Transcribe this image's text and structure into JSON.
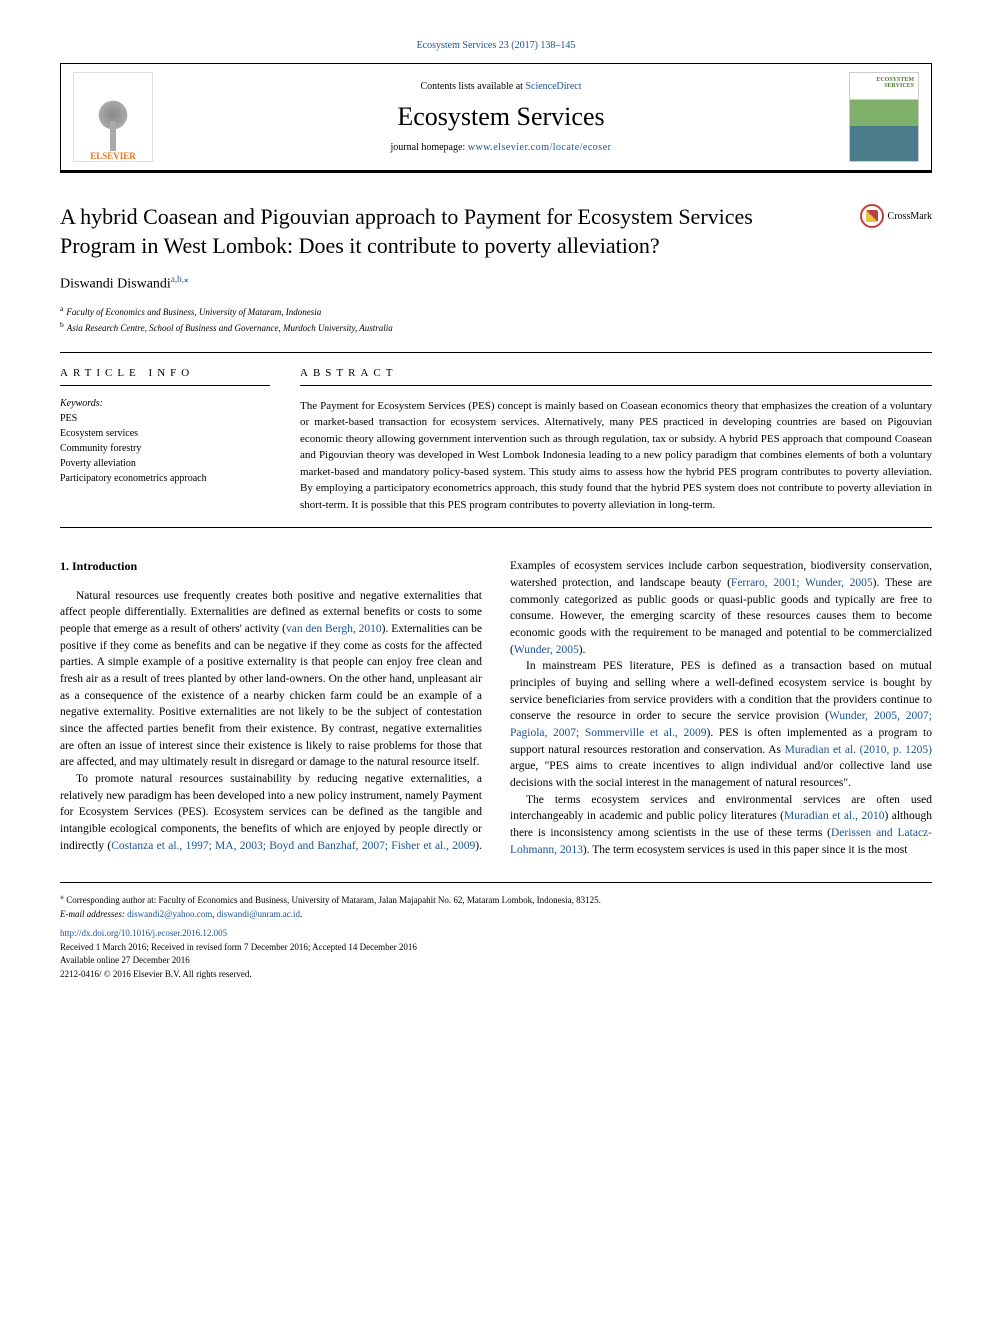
{
  "journal_ref": "Ecosystem Services 23 (2017) 138–145",
  "header": {
    "contents_prefix": "Contents lists available at ",
    "contents_link": "ScienceDirect",
    "journal_name": "Ecosystem Services",
    "homepage_prefix": "journal homepage: ",
    "homepage_url": "www.elsevier.com/locate/ecoser",
    "publisher": "ELSEVIER"
  },
  "crossmark": "CrossMark",
  "title": "A hybrid Coasean and Pigouvian approach to Payment for Ecosystem Services Program in West Lombok: Does it contribute to poverty alleviation?",
  "author": {
    "name": "Diswandi Diswandi",
    "marks": "a,b,⁎"
  },
  "affiliations": {
    "a": "Faculty of Economics and Business, University of Mataram, Indonesia",
    "b": "Asia Research Centre, School of Business and Governance, Murdoch University, Australia"
  },
  "article_info_head": "ARTICLE INFO",
  "abstract_head": "ABSTRACT",
  "keywords_label": "Keywords:",
  "keywords": [
    "PES",
    "Ecosystem services",
    "Community forestry",
    "Poverty alleviation",
    "Participatory econometrics approach"
  ],
  "abstract": "The Payment for Ecosystem Services (PES) concept is mainly based on Coasean economics theory that emphasizes the creation of a voluntary or market-based transaction for ecosystem services. Alternatively, many PES practiced in developing countries are based on Pigouvian economic theory allowing government intervention such as through regulation, tax or subsidy. A hybrid PES approach that compound Coasean and Pigouvian theory was developed in West Lombok Indonesia leading to a new policy paradigm that combines elements of both a voluntary market-based and mandatory policy-based system. This study aims to assess how the hybrid PES program contributes to poverty alleviation. By employing a participatory econometrics approach, this study found that the hybrid PES system does not contribute to poverty alleviation in short-term. It is possible that this PES program contributes to poverty alleviation in long-term.",
  "section1_head": "1. Introduction",
  "body": {
    "p1a": "Natural resources use frequently creates both positive and negative externalities that affect people differentially. Externalities are defined as external benefits or costs to some people that emerge as a result of others' activity (",
    "p1_ref1": "van den Bergh, 2010",
    "p1b": "). Externalities can be positive if they come as benefits and can be negative if they come as costs for the affected parties. A simple example of a positive externality is that people can enjoy free clean and fresh air as a result of trees planted by other land-owners. On the other hand, unpleasant air as a consequence of the existence of a nearby chicken farm could be an example of a negative externality. Positive externalities are not likely to be the subject of contestation since the affected parties benefit from their existence. By contrast, negative externalities are often an issue of interest since their existence is likely to raise problems for those that are affected, and may ultimately result in disregard or damage to the natural resource itself.",
    "p2a": "To promote natural resources sustainability by reducing negative externalities, a relatively new paradigm has been developed into a new policy instrument, namely Payment for Ecosystem Services (PES). Ecosystem services can be defined as the tangible and intangible ecological components, the benefits of which are enjoyed by people directly or indirectly (",
    "p2_ref1": "Costanza et al., 1997; MA, 2003; Boyd and Banzhaf, 2007; Fisher et al., 2009",
    "p2b": "). Examples of ecosystem services include carbon sequestration, biodiversity conservation, watershed protection, and landscape beauty (",
    "p2_ref2": "Ferraro, 2001; Wunder, 2005",
    "p2c": "). These are commonly categorized as public goods or quasi-public goods and typically are free to consume. However, the emerging scarcity of these resources causes them to become economic goods with the requirement to be managed and potential to be commercialized (",
    "p2_ref3": "Wunder, 2005",
    "p2d": ").",
    "p3a": "In mainstream PES literature, PES is defined as a transaction based on mutual principles of buying and selling where a well-defined ecosystem service is bought by service beneficiaries from service providers with a condition that the providers continue to conserve the resource in order to secure the service provision (",
    "p3_ref1": "Wunder, 2005, 2007; Pagiola, 2007; Sommerville et al., 2009",
    "p3b": "). PES is often implemented as a program to support natural resources restoration and conservation. As ",
    "p3_ref2": "Muradian et al. (2010, p. 1205)",
    "p3c": " argue, \"PES aims to create incentives to align individual and/or collective land use decisions with the social interest in the management of natural resources\".",
    "p4a": "The terms ecosystem services and environmental services are often used interchangeably in academic and public policy literatures (",
    "p4_ref1": "Muradian et al., 2010",
    "p4b": ") although there is inconsistency among scientists in the use of these terms (",
    "p4_ref2": "Derissen and Latacz-Lohmann, 2013",
    "p4c": "). The term ecosystem services is used in this paper since it is the most"
  },
  "footer": {
    "corr": "Corresponding author at: Faculty of Economics and Business, University of Mataram, Jalan Majapahit No. 62, Mataram Lombok, Indonesia, 83125.",
    "email_label": "E-mail addresses: ",
    "email1": "diswandi2@yahoo.com",
    "email_sep": ", ",
    "email2": "diswandi@unram.ac.id",
    "email_end": ".",
    "doi": "http://dx.doi.org/10.1016/j.ecoser.2016.12.005",
    "received": "Received 1 March 2016; Received in revised form 7 December 2016; Accepted 14 December 2016",
    "available": "Available online 27 December 2016",
    "copyright": "2212-0416/ © 2016 Elsevier B.V. All rights reserved."
  },
  "colors": {
    "link": "#1a5490",
    "elsevier_orange": "#e8751a",
    "text": "#000000",
    "background": "#ffffff"
  },
  "typography": {
    "title_fontsize": 22,
    "journal_fontsize": 26,
    "body_fontsize": 11.5,
    "abstract_fontsize": 11,
    "footer_fontsize": 9
  }
}
